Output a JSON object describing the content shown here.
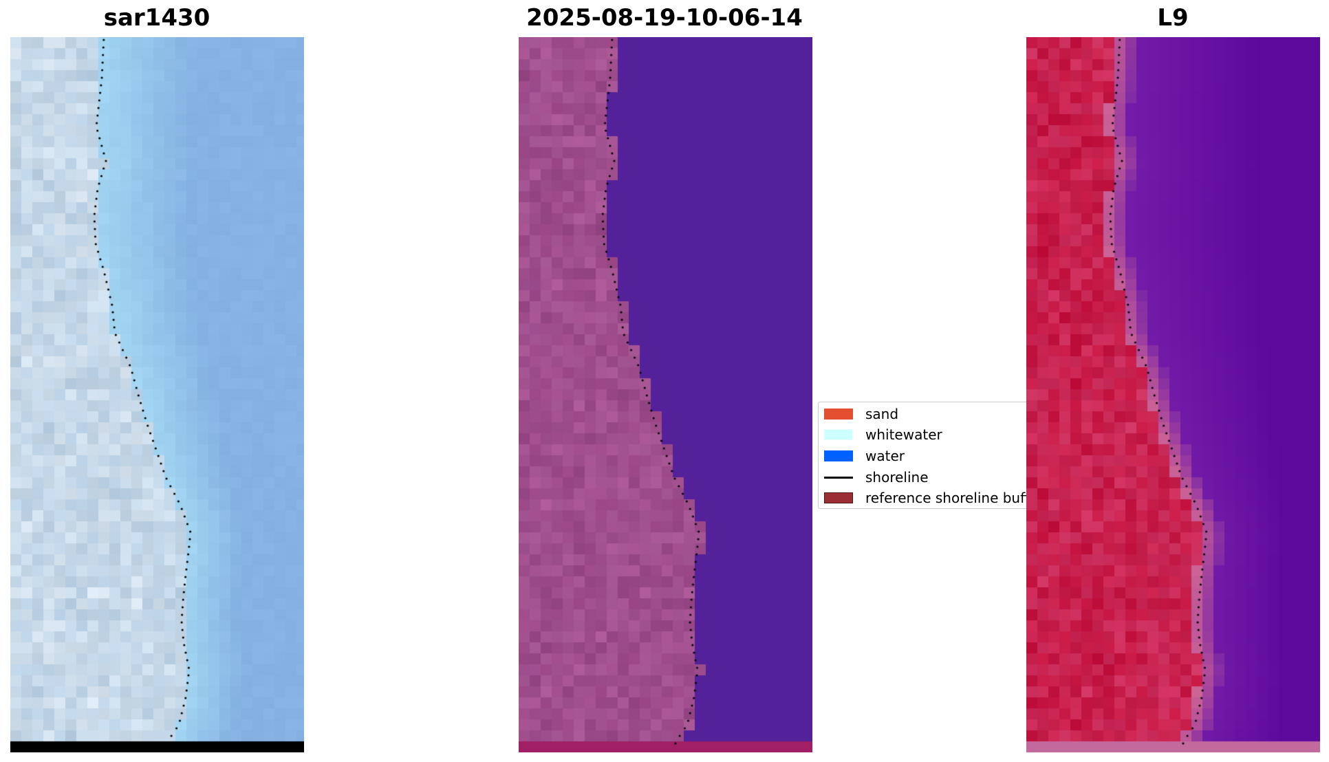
{
  "panels": [
    {
      "title": "sar1430",
      "kind": "rgb-image"
    },
    {
      "title": "2025-08-19-10-06-14",
      "kind": "classified-image"
    },
    {
      "title": "L9",
      "kind": "index-image"
    }
  ],
  "legend": {
    "items": [
      {
        "label": "sand",
        "type": "patch",
        "color": "#e3502f"
      },
      {
        "label": "whitewater",
        "type": "patch",
        "color": "#ccffff"
      },
      {
        "label": "water",
        "type": "patch",
        "color": "#0061ff"
      },
      {
        "label": "shoreline",
        "type": "line",
        "color": "#000000"
      },
      {
        "label": "reference shoreline buffer",
        "type": "patch",
        "color": "#9b2d35"
      }
    ]
  },
  "colors": {
    "rgb_water": "#86b3e3",
    "rgb_nearshore": "#a3d6f2",
    "rgb_land": "#c6d8e8",
    "classified_water": "#53219a",
    "classified_land": "#a75291",
    "classified_bottom_strip": "#a11f64",
    "index_water": "#5d0a9c",
    "index_land": "#c4133f",
    "index_bottom_strip": "#c2699e",
    "nodata_strip": "#000000"
  }
}
